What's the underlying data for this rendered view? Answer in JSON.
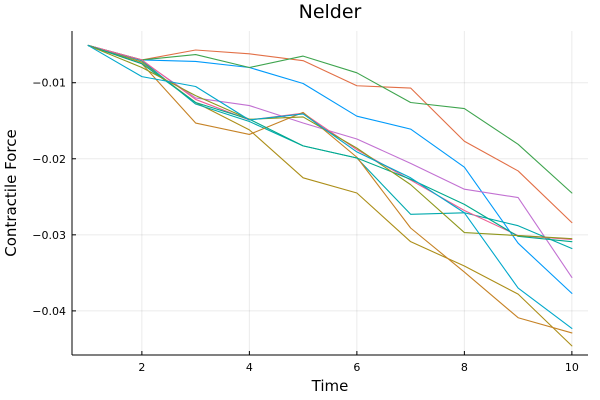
{
  "chart_data": {
    "type": "line",
    "title": "Nelder",
    "xlabel": "Time",
    "ylabel": "Contractile Force",
    "xlim": [
      0.7,
      10.3
    ],
    "ylim": [
      -0.0458,
      -0.0032
    ],
    "xticks": [
      2,
      4,
      6,
      8,
      10
    ],
    "yticks": [
      -0.04,
      -0.03,
      -0.02,
      -0.01
    ],
    "ytick_labels": [
      "−0.04",
      "−0.03",
      "−0.02",
      "−0.01"
    ],
    "grid": true,
    "legend": "none",
    "x": [
      1,
      2,
      3,
      4,
      5,
      6,
      7,
      8,
      9,
      10
    ],
    "series": [
      {
        "color": "#009AFA",
        "values": [
          -0.0051,
          -0.007,
          -0.0072,
          -0.008,
          -0.0101,
          -0.0144,
          -0.0161,
          -0.0211,
          -0.0311,
          -0.0377
        ]
      },
      {
        "color": "#E26F46",
        "values": [
          -0.0051,
          -0.007,
          -0.0057,
          -0.0062,
          -0.0071,
          -0.0104,
          -0.0107,
          -0.0177,
          -0.0216,
          -0.0284
        ]
      },
      {
        "color": "#3EA44E",
        "values": [
          -0.0051,
          -0.007,
          -0.0063,
          -0.008,
          -0.0065,
          -0.0087,
          -0.0126,
          -0.0134,
          -0.0181,
          -0.0245
        ]
      },
      {
        "color": "#C271D2",
        "values": [
          -0.0051,
          -0.0071,
          -0.012,
          -0.013,
          -0.0153,
          -0.0174,
          -0.0206,
          -0.024,
          -0.0251,
          -0.0356
        ]
      },
      {
        "color": "#AC8E18",
        "values": [
          -0.0051,
          -0.0073,
          -0.0126,
          -0.0162,
          -0.0225,
          -0.0245,
          -0.0309,
          -0.0341,
          -0.0378,
          -0.0446
        ]
      },
      {
        "color": "#00A9AD",
        "values": [
          -0.0051,
          -0.0071,
          -0.0128,
          -0.0151,
          -0.0183,
          -0.0199,
          -0.0273,
          -0.0271,
          -0.0288,
          -0.0318
        ]
      },
      {
        "color": "#ED5E93",
        "values": [
          -0.0051,
          -0.007,
          -0.0122,
          -0.0149,
          -0.014,
          -0.0188,
          -0.0228,
          -0.0268,
          -0.0301,
          -0.0306
        ]
      },
      {
        "color": "#C68225",
        "values": [
          -0.0051,
          -0.0075,
          -0.0153,
          -0.0168,
          -0.0139,
          -0.0198,
          -0.0291,
          -0.0349,
          -0.0409,
          -0.0429
        ]
      },
      {
        "color": "#00A98D",
        "values": [
          -0.0051,
          -0.0075,
          -0.0126,
          -0.0148,
          -0.0183,
          -0.0199,
          -0.0227,
          -0.026,
          -0.0302,
          -0.0309
        ]
      },
      {
        "color": "#8E971D",
        "values": [
          -0.0051,
          -0.008,
          -0.0117,
          -0.0148,
          -0.0145,
          -0.0186,
          -0.0234,
          -0.0297,
          -0.0301,
          -0.0305
        ]
      },
      {
        "color": "#00A8CB",
        "values": [
          -0.0051,
          -0.0092,
          -0.0105,
          -0.0149,
          -0.0141,
          -0.0191,
          -0.0225,
          -0.0271,
          -0.037,
          -0.0423
        ]
      }
    ]
  }
}
